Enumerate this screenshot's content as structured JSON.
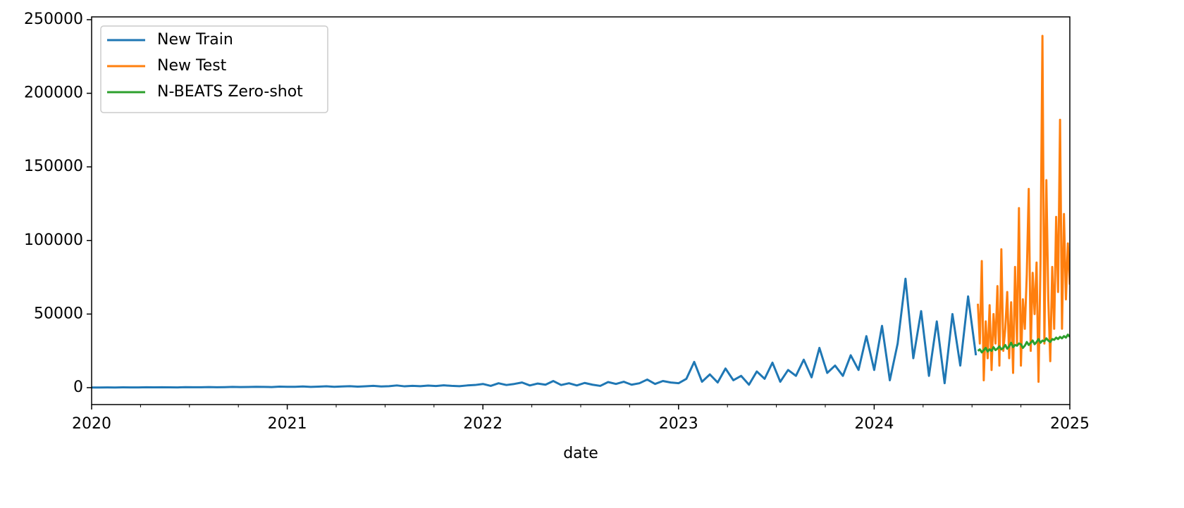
{
  "chart_data": {
    "type": "line",
    "x_label": "date",
    "xlim": [
      2020,
      2025
    ],
    "xticks": [
      2020,
      2021,
      2022,
      2023,
      2024,
      2025
    ],
    "xminorticks": [
      2020.25,
      2020.5,
      2020.75,
      2021.25,
      2021.5,
      2021.75,
      2022.25,
      2022.5,
      2022.75,
      2023.25,
      2023.5,
      2023.75,
      2024.25,
      2024.5,
      2024.75
    ],
    "ylim": [
      -11500,
      251900
    ],
    "yticks": [
      0,
      50000,
      100000,
      150000,
      200000,
      250000
    ],
    "grid": false,
    "legend": "upper left",
    "series": [
      {
        "name": "New Train",
        "color": "#1f77b4",
        "x": [
          2020.0,
          2020.04,
          2020.08,
          2020.12,
          2020.16,
          2020.2,
          2020.24,
          2020.28,
          2020.32,
          2020.36,
          2020.4,
          2020.44,
          2020.48,
          2020.52,
          2020.56,
          2020.6,
          2020.64,
          2020.68,
          2020.72,
          2020.76,
          2020.8,
          2020.84,
          2020.88,
          2020.92,
          2020.96,
          2021.0,
          2021.04,
          2021.08,
          2021.12,
          2021.16,
          2021.2,
          2021.24,
          2021.28,
          2021.32,
          2021.36,
          2021.4,
          2021.44,
          2021.48,
          2021.52,
          2021.56,
          2021.6,
          2021.64,
          2021.68,
          2021.72,
          2021.76,
          2021.8,
          2021.84,
          2021.88,
          2021.92,
          2021.96,
          2022.0,
          2022.04,
          2022.08,
          2022.12,
          2022.16,
          2022.2,
          2022.24,
          2022.28,
          2022.32,
          2022.36,
          2022.4,
          2022.44,
          2022.48,
          2022.52,
          2022.56,
          2022.6,
          2022.64,
          2022.68,
          2022.72,
          2022.76,
          2022.8,
          2022.84,
          2022.88,
          2022.92,
          2022.96,
          2023.0,
          2023.04,
          2023.08,
          2023.12,
          2023.16,
          2023.2,
          2023.24,
          2023.28,
          2023.32,
          2023.36,
          2023.4,
          2023.44,
          2023.48,
          2023.52,
          2023.56,
          2023.6,
          2023.64,
          2023.68,
          2023.72,
          2023.76,
          2023.8,
          2023.84,
          2023.88,
          2023.92,
          2023.96,
          2024.0,
          2024.04,
          2024.08,
          2024.12,
          2024.16,
          2024.2,
          2024.24,
          2024.28,
          2024.32,
          2024.36,
          2024.4,
          2024.44,
          2024.48,
          2024.52
        ],
        "values": [
          80,
          120,
          150,
          100,
          200,
          180,
          150,
          250,
          200,
          300,
          220,
          180,
          350,
          300,
          250,
          400,
          300,
          350,
          500,
          400,
          450,
          600,
          500,
          400,
          700,
          550,
          600,
          800,
          500,
          700,
          900,
          600,
          800,
          1000,
          700,
          900,
          1200,
          800,
          1000,
          1500,
          900,
          1200,
          1000,
          1400,
          1100,
          1600,
          1200,
          1000,
          1500,
          1800,
          2500,
          1200,
          3000,
          1800,
          2500,
          3500,
          1500,
          2800,
          2000,
          4500,
          1800,
          3000,
          1500,
          3200,
          2000,
          1200,
          3800,
          2500,
          4000,
          2000,
          3000,
          5500,
          2500,
          4500,
          3500,
          3000,
          6000,
          17500,
          4000,
          9000,
          3500,
          13000,
          5000,
          8000,
          2000,
          11000,
          6000,
          17000,
          4000,
          12000,
          8000,
          19000,
          7000,
          27000,
          10000,
          15000,
          8000,
          22000,
          12000,
          35000,
          12000,
          42000,
          5000,
          30000,
          74000,
          20000,
          52000,
          8000,
          45000,
          3000,
          50000,
          15000,
          62000,
          22000
        ]
      },
      {
        "name": "New Test",
        "color": "#ff7f0e",
        "x": [
          2024.53,
          2024.54,
          2024.55,
          2024.56,
          2024.57,
          2024.58,
          2024.59,
          2024.6,
          2024.61,
          2024.62,
          2024.63,
          2024.64,
          2024.65,
          2024.66,
          2024.67,
          2024.68,
          2024.69,
          2024.7,
          2024.71,
          2024.72,
          2024.73,
          2024.74,
          2024.75,
          2024.76,
          2024.77,
          2024.78,
          2024.79,
          2024.8,
          2024.81,
          2024.82,
          2024.83,
          2024.84,
          2024.85,
          2024.86,
          2024.87,
          2024.88,
          2024.89,
          2024.9,
          2024.91,
          2024.92,
          2024.93,
          2024.94,
          2024.95,
          2024.96,
          2024.97,
          2024.98,
          2024.99,
          2025.0
        ],
        "values": [
          57000,
          30000,
          86000,
          5000,
          45000,
          20000,
          56000,
          12000,
          50000,
          30000,
          69000,
          15000,
          94000,
          25000,
          40000,
          65000,
          20000,
          58000,
          10000,
          82000,
          30000,
          122000,
          15000,
          60000,
          40000,
          77000,
          135000,
          25000,
          78000,
          50000,
          85000,
          4000,
          84000,
          239000,
          30000,
          141000,
          60000,
          18000,
          82000,
          40000,
          116000,
          65000,
          182000,
          40000,
          118000,
          60000,
          98000,
          70000
        ]
      },
      {
        "name": "N-BEATS Zero-shot",
        "color": "#2ca02c",
        "x": [
          2024.53,
          2024.54,
          2024.55,
          2024.56,
          2024.57,
          2024.58,
          2024.59,
          2024.6,
          2024.61,
          2024.62,
          2024.63,
          2024.64,
          2024.65,
          2024.66,
          2024.67,
          2024.68,
          2024.69,
          2024.7,
          2024.71,
          2024.72,
          2024.73,
          2024.74,
          2024.75,
          2024.76,
          2024.77,
          2024.78,
          2024.79,
          2024.8,
          2024.81,
          2024.82,
          2024.83,
          2024.84,
          2024.85,
          2024.86,
          2024.87,
          2024.88,
          2024.89,
          2024.9,
          2024.91,
          2024.92,
          2024.93,
          2024.94,
          2024.95,
          2024.96,
          2024.97,
          2024.98,
          2024.99,
          2025.0
        ],
        "values": [
          25000,
          26000,
          24000,
          25500,
          27000,
          24500,
          26000,
          25000,
          27500,
          25500,
          26500,
          28000,
          26000,
          27000,
          29000,
          26500,
          28000,
          30500,
          27500,
          29000,
          28500,
          30000,
          29500,
          27000,
          28500,
          31000,
          29000,
          30500,
          32000,
          29500,
          31000,
          33000,
          30500,
          32000,
          31500,
          33500,
          32000,
          31000,
          33000,
          32500,
          34000,
          33000,
          34500,
          33500,
          35000,
          34000,
          36000,
          34500
        ]
      }
    ]
  }
}
